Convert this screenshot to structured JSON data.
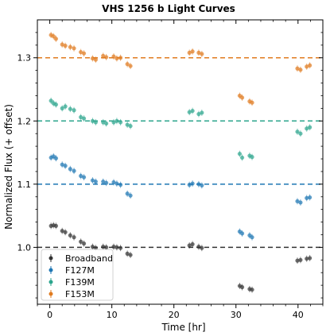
{
  "chart_data": {
    "type": "scatter",
    "title": "VHS 1256 b Light Curves",
    "xlabel": "Time [hr]",
    "ylabel": "Normalized Flux (+ offset)",
    "xlim": [
      -2,
      44
    ],
    "ylim": [
      0.91,
      1.36
    ],
    "xticks": [
      0,
      10,
      20,
      30,
      40
    ],
    "yticks": [
      1.0,
      1.1,
      1.2,
      1.3
    ],
    "xtick_labels": [
      "0",
      "10",
      "20",
      "30",
      "40"
    ],
    "ytick_labels": [
      "1.0",
      "1.1",
      "1.2",
      "1.3"
    ],
    "grid": false,
    "legend_position": "bottom-left",
    "colors": {
      "Broadband": "#333333",
      "F127M": "#1f77b4",
      "F139M": "#2ca58d",
      "F153M": "#e07b1f"
    },
    "reference_lines": [
      {
        "y": 1.0,
        "style": "dashed",
        "series": "Broadband"
      },
      {
        "y": 1.1,
        "style": "dashed",
        "series": "F127M"
      },
      {
        "y": 1.2,
        "style": "dashed",
        "series": "F139M"
      },
      {
        "y": 1.3,
        "style": "dashed",
        "series": "F153M"
      }
    ],
    "series": [
      {
        "name": "Broadband",
        "points": [
          [
            0.2,
            1.034
          ],
          [
            0.6,
            1.035
          ],
          [
            1.0,
            1.034
          ],
          [
            2.0,
            1.026
          ],
          [
            2.5,
            1.024
          ],
          [
            3.3,
            1.019
          ],
          [
            3.9,
            1.016
          ],
          [
            5.0,
            1.009
          ],
          [
            5.5,
            1.006
          ],
          [
            6.9,
            1.001
          ],
          [
            7.4,
            0.999
          ],
          [
            8.6,
            1.001
          ],
          [
            9.1,
            1.0
          ],
          [
            10.3,
            1.001
          ],
          [
            10.8,
            1.0
          ],
          [
            11.4,
            0.999
          ],
          [
            12.5,
            0.99
          ],
          [
            13.0,
            0.988
          ],
          [
            22.5,
            1.003
          ],
          [
            23.0,
            1.005
          ],
          [
            24.0,
            1.001
          ],
          [
            24.5,
            0.999
          ],
          [
            30.6,
            0.939
          ],
          [
            31.0,
            0.937
          ],
          [
            32.2,
            0.934
          ],
          [
            32.6,
            0.933
          ],
          [
            39.9,
            0.979
          ],
          [
            40.4,
            0.98
          ],
          [
            41.4,
            0.982
          ],
          [
            41.9,
            0.983
          ]
        ]
      },
      {
        "name": "F127M",
        "points": [
          [
            0.2,
            1.142
          ],
          [
            0.6,
            1.144
          ],
          [
            1.0,
            1.141
          ],
          [
            2.0,
            1.131
          ],
          [
            2.5,
            1.129
          ],
          [
            3.3,
            1.124
          ],
          [
            3.9,
            1.121
          ],
          [
            5.0,
            1.113
          ],
          [
            5.5,
            1.111
          ],
          [
            6.9,
            1.106
          ],
          [
            7.4,
            1.104
          ],
          [
            8.6,
            1.104
          ],
          [
            9.1,
            1.102
          ],
          [
            10.3,
            1.103
          ],
          [
            10.8,
            1.101
          ],
          [
            11.4,
            1.099
          ],
          [
            12.5,
            1.085
          ],
          [
            13.0,
            1.082
          ],
          [
            22.5,
            1.099
          ],
          [
            23.0,
            1.101
          ],
          [
            24.0,
            1.1
          ],
          [
            24.5,
            1.098
          ],
          [
            30.6,
            1.025
          ],
          [
            31.0,
            1.022
          ],
          [
            32.2,
            1.019
          ],
          [
            32.6,
            1.016
          ],
          [
            39.9,
            1.073
          ],
          [
            40.4,
            1.071
          ],
          [
            41.4,
            1.078
          ],
          [
            41.9,
            1.079
          ]
        ]
      },
      {
        "name": "F139M",
        "points": [
          [
            0.2,
            1.232
          ],
          [
            0.6,
            1.228
          ],
          [
            1.0,
            1.226
          ],
          [
            2.0,
            1.22
          ],
          [
            2.5,
            1.223
          ],
          [
            3.3,
            1.219
          ],
          [
            3.9,
            1.217
          ],
          [
            5.0,
            1.206
          ],
          [
            5.5,
            1.204
          ],
          [
            6.9,
            1.2
          ],
          [
            7.4,
            1.198
          ],
          [
            8.6,
            1.198
          ],
          [
            9.1,
            1.196
          ],
          [
            10.3,
            1.198
          ],
          [
            10.8,
            1.2
          ],
          [
            11.4,
            1.198
          ],
          [
            12.5,
            1.194
          ],
          [
            13.0,
            1.192
          ],
          [
            22.5,
            1.214
          ],
          [
            23.0,
            1.216
          ],
          [
            24.0,
            1.211
          ],
          [
            24.5,
            1.213
          ],
          [
            30.6,
            1.148
          ],
          [
            31.0,
            1.142
          ],
          [
            32.2,
            1.145
          ],
          [
            32.6,
            1.143
          ],
          [
            39.9,
            1.183
          ],
          [
            40.4,
            1.18
          ],
          [
            41.4,
            1.188
          ],
          [
            41.9,
            1.19
          ]
        ]
      },
      {
        "name": "F153M",
        "points": [
          [
            0.2,
            1.336
          ],
          [
            0.6,
            1.334
          ],
          [
            1.0,
            1.33
          ],
          [
            2.0,
            1.321
          ],
          [
            2.5,
            1.319
          ],
          [
            3.3,
            1.317
          ],
          [
            3.9,
            1.315
          ],
          [
            5.0,
            1.309
          ],
          [
            5.5,
            1.307
          ],
          [
            6.9,
            1.299
          ],
          [
            7.4,
            1.297
          ],
          [
            8.6,
            1.303
          ],
          [
            9.1,
            1.301
          ],
          [
            10.3,
            1.302
          ],
          [
            10.8,
            1.299
          ],
          [
            11.4,
            1.3
          ],
          [
            12.5,
            1.29
          ],
          [
            13.0,
            1.287
          ],
          [
            22.5,
            1.308
          ],
          [
            23.0,
            1.31
          ],
          [
            24.0,
            1.308
          ],
          [
            24.5,
            1.306
          ],
          [
            30.6,
            1.24
          ],
          [
            31.0,
            1.237
          ],
          [
            32.2,
            1.231
          ],
          [
            32.6,
            1.229
          ],
          [
            39.9,
            1.283
          ],
          [
            40.4,
            1.281
          ],
          [
            41.4,
            1.286
          ],
          [
            41.9,
            1.288
          ]
        ]
      }
    ]
  }
}
